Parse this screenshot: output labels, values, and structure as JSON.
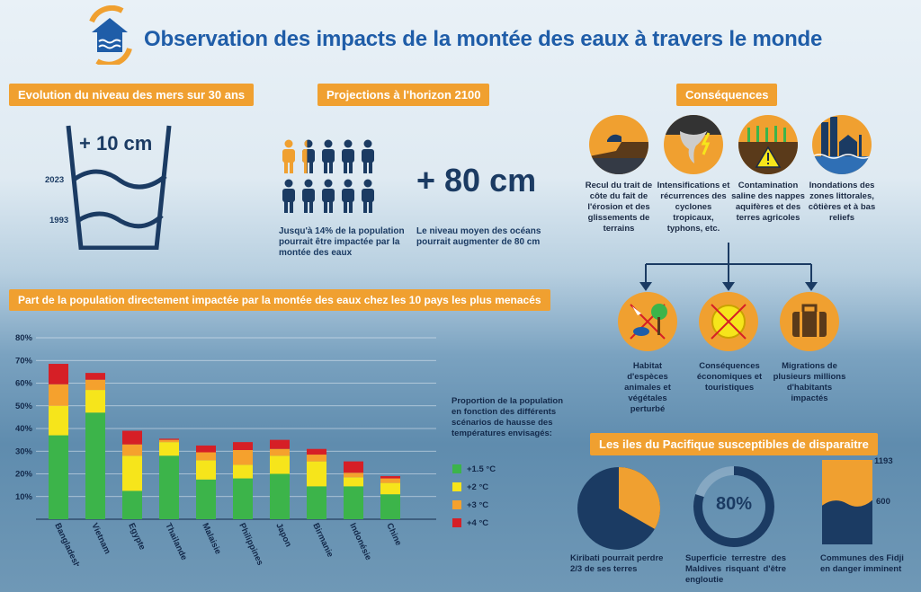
{
  "header": {
    "title": "Observation des impacts de la montée des eaux à travers le monde",
    "logo_icon": "house-water-icon"
  },
  "sea_level": {
    "pill": "Evolution du niveau des mers sur 30 ans",
    "delta": "+ 10 cm",
    "year_2023": "2023",
    "year_1993": "1993"
  },
  "projections": {
    "pill": "Projections  à  l'horizon  2100",
    "population_text": "Jusqu'à 14% de la population pourrait être impactée par la montée des eaux",
    "ocean_value": "+ 80 cm",
    "ocean_text": "Le niveau moyen des océans pourrait augmenter de 80 cm",
    "people_highlight": 1.4,
    "people_total": 10
  },
  "consequences": {
    "pill": "Conséquences",
    "causes": [
      {
        "icon": "coast-erosion-icon",
        "text": "Recul du trait de côte du fait de l'érosion et des glissements de terrains"
      },
      {
        "icon": "cyclone-icon",
        "text": "Intensifications et récurrences des cyclones tropicaux, typhons, etc."
      },
      {
        "icon": "salt-warning-icon",
        "text": "Contamination saline des nappes aquifères et des terres agricoles"
      },
      {
        "icon": "flooded-city-icon",
        "text": "Inondations des zones littorales, côtières et à bas reliefs"
      }
    ],
    "effects": [
      {
        "icon": "habitat-icon",
        "text": "Habitat d'espèces animales et végétales perturbé"
      },
      {
        "icon": "economy-icon",
        "text": "Conséquences économiques et touristiques"
      },
      {
        "icon": "suitcase-icon",
        "text": "Migrations de plusieurs millions d'habitants impactés"
      }
    ]
  },
  "pacific": {
    "pill": "Les iles du Pacifique susceptibles de disparaitre",
    "kiribati_text": "Kiribati pourrait perdre 2/3 de ses terres",
    "kiribati_fraction": 0.667,
    "maldives_value": "80%",
    "maldives_fraction": 0.8,
    "maldives_text": "Superficie  terrestre des  Maldives  risquant d'être engloutie",
    "fidji_top": "1193",
    "fidji_mid": "600",
    "fidji_text": "Communes des Fidji en danger imminent",
    "fidji_total": 1193,
    "fidji_danger": 600
  },
  "colors": {
    "orange": "#f0a030",
    "navy": "#1b3b63",
    "green": "#3cb44a",
    "yellow": "#f6e51b",
    "light_orange": "#f5a12d",
    "red": "#d61f26"
  },
  "chart_data": {
    "type": "bar",
    "title": "Part de la population directement impactée par la montée des eaux chez les 10 pays les plus menacés",
    "categories": [
      "Bangladesh",
      "Vietnam",
      "Egypte",
      "Thailande",
      "Malaisie",
      "Philippines",
      "Japon",
      "Birmanie",
      "Indonésie",
      "Chine"
    ],
    "ylim": [
      0,
      80
    ],
    "yticks": [
      "10%",
      "20%",
      "30%",
      "40%",
      "50%",
      "60%",
      "70%",
      "80%"
    ],
    "legend_title": "Proportion de la population en fonction des différents scénarios de hausse des températures envisagés:",
    "series": [
      {
        "name": "+1.5 °C",
        "values": [
          37,
          47,
          12.5,
          28,
          17.5,
          18,
          20,
          14.5,
          14.5,
          11
        ]
      },
      {
        "name": "+2 °C",
        "values": [
          13,
          10,
          15.5,
          6,
          8.5,
          6,
          8,
          11,
          4,
          5
        ]
      },
      {
        "name": "+3 °C",
        "values": [
          9.5,
          4.5,
          5,
          1,
          3.5,
          6.5,
          3,
          3,
          2,
          2
        ]
      },
      {
        "name": "+4 °C",
        "values": [
          9,
          3,
          6,
          0.5,
          3,
          3.5,
          4,
          2.5,
          5,
          1
        ]
      }
    ]
  }
}
